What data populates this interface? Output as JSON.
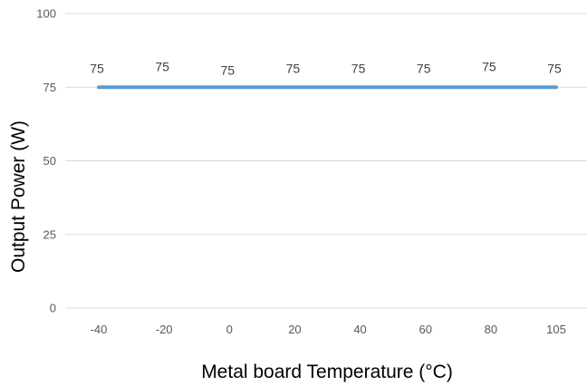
{
  "chart_data": {
    "type": "line",
    "title": "",
    "xlabel": "Metal board Temperature (°C)",
    "ylabel": "Output Power (W)",
    "categories": [
      "-40",
      "-20",
      "0",
      "20",
      "40",
      "60",
      "80",
      "105"
    ],
    "series": [
      {
        "values": [
          75,
          75,
          75,
          75,
          75,
          75,
          75,
          75
        ],
        "color": "#5b9bd5"
      }
    ],
    "ylim": [
      0,
      100
    ],
    "yticks": [
      "0",
      "25",
      "50",
      "75",
      "100"
    ],
    "grid": true,
    "legend": "none",
    "data_labels": true
  }
}
